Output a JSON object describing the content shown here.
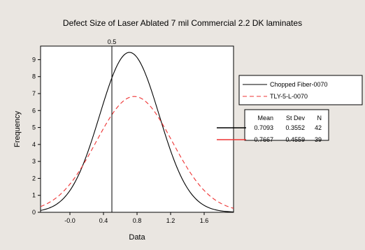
{
  "colors": {
    "background": "#eae6e1",
    "plot_bg": "#ffffff",
    "series_1": "#000000",
    "series_2": "#ee3333",
    "ref_line": "#000000"
  },
  "chart_data": {
    "type": "line",
    "title": "Defect Size of Laser Ablated 7 mil Commercial 2.2 DK laminates",
    "xlabel": "Data",
    "ylabel": "Frequency",
    "xlim": [
      -0.35,
      1.95
    ],
    "ylim": [
      0,
      9.8
    ],
    "x_ticks": [
      {
        "value": 0.0,
        "label": "-0.0"
      },
      {
        "value": 0.4,
        "label": "0.4"
      },
      {
        "value": 0.8,
        "label": "0.8"
      },
      {
        "value": 1.2,
        "label": "1.2"
      },
      {
        "value": 1.6,
        "label": "1.6"
      }
    ],
    "y_ticks": [
      0,
      1,
      2,
      3,
      4,
      5,
      6,
      7,
      8,
      9
    ],
    "reference_line": {
      "x": 0.5,
      "label": "0.5"
    },
    "grid": false,
    "legend_position": "right",
    "stats_header": {
      "mean": "Mean",
      "stdev": "St Dev",
      "n": "N"
    },
    "series": [
      {
        "name": "Chopped Fiber-0070",
        "mean": 0.7093,
        "stdev": 0.3552,
        "n": 42,
        "mean_label": "0.7093",
        "stdev_label": "0.3552",
        "n_label": "42",
        "color": "#000000",
        "dash": "none",
        "peak": 9.43
      },
      {
        "name": "TLY-5-L-0070",
        "mean": 0.7667,
        "stdev": 0.4559,
        "n": 39,
        "mean_label": "0.7667",
        "stdev_label": "0.4559",
        "n_label": "39",
        "color": "#ee3333",
        "dash": "6 4",
        "peak": 6.83
      }
    ]
  }
}
